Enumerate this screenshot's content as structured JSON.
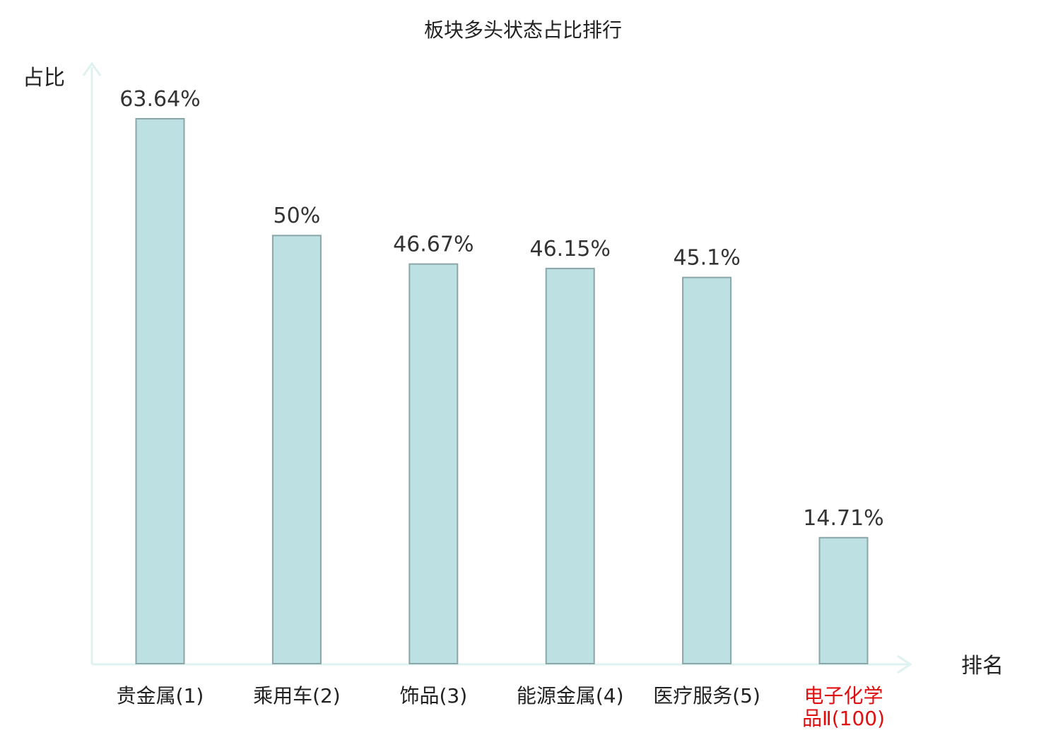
{
  "chart_data": {
    "type": "bar",
    "title": "板块多头状态占比排行",
    "ylabel": "占比",
    "xlabel": "排名",
    "categories": [
      {
        "lines": [
          "贵金属(1)"
        ],
        "highlight": false
      },
      {
        "lines": [
          "乘用车(2)"
        ],
        "highlight": false
      },
      {
        "lines": [
          "饰品(3)"
        ],
        "highlight": false
      },
      {
        "lines": [
          "能源金属(4)"
        ],
        "highlight": false
      },
      {
        "lines": [
          "医疗服务(5)"
        ],
        "highlight": false
      },
      {
        "lines": [
          "电子化学",
          "品Ⅱ(100)"
        ],
        "highlight": true
      }
    ],
    "values": [
      63.64,
      50,
      46.67,
      46.15,
      45.1,
      14.71
    ],
    "value_labels": [
      "63.64%",
      "50%",
      "46.67%",
      "46.15%",
      "45.1%",
      "14.71%"
    ],
    "ylim": [
      0,
      65
    ],
    "grid": false,
    "colors": {
      "bar_fill": "#bde0e3",
      "bar_stroke": "#8aa6a8",
      "axis": "#dff2ef",
      "highlight_text": "#e01010"
    }
  }
}
